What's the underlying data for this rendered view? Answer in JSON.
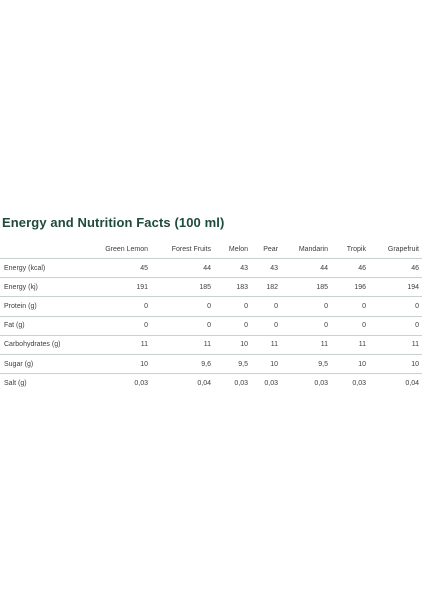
{
  "title": "Energy and Nutrition Facts (100 ml)",
  "table": {
    "columns": [
      "",
      "Green Lemon",
      "Forest Fruits",
      "Melon",
      "Pear",
      "Mandarin",
      "Tropik",
      "Grapefruit"
    ],
    "rows": [
      [
        "Energy (kcal)",
        "45",
        "44",
        "43",
        "43",
        "44",
        "46",
        "46"
      ],
      [
        "Energy (kj)",
        "191",
        "185",
        "183",
        "182",
        "185",
        "196",
        "194"
      ],
      [
        "Protein (g)",
        "0",
        "0",
        "0",
        "0",
        "0",
        "0",
        "0"
      ],
      [
        "Fat (g)",
        "0",
        "0",
        "0",
        "0",
        "0",
        "0",
        "0"
      ],
      [
        "Carbohydrates (g)",
        "11",
        "11",
        "10",
        "11",
        "11",
        "11",
        "11"
      ],
      [
        "Sugar (g)",
        "10",
        "9,6",
        "9,5",
        "10",
        "9,5",
        "10",
        "10"
      ],
      [
        "Salt (g)",
        "0,03",
        "0,04",
        "0,03",
        "0,03",
        "0,03",
        "0,03",
        "0,04"
      ]
    ]
  }
}
